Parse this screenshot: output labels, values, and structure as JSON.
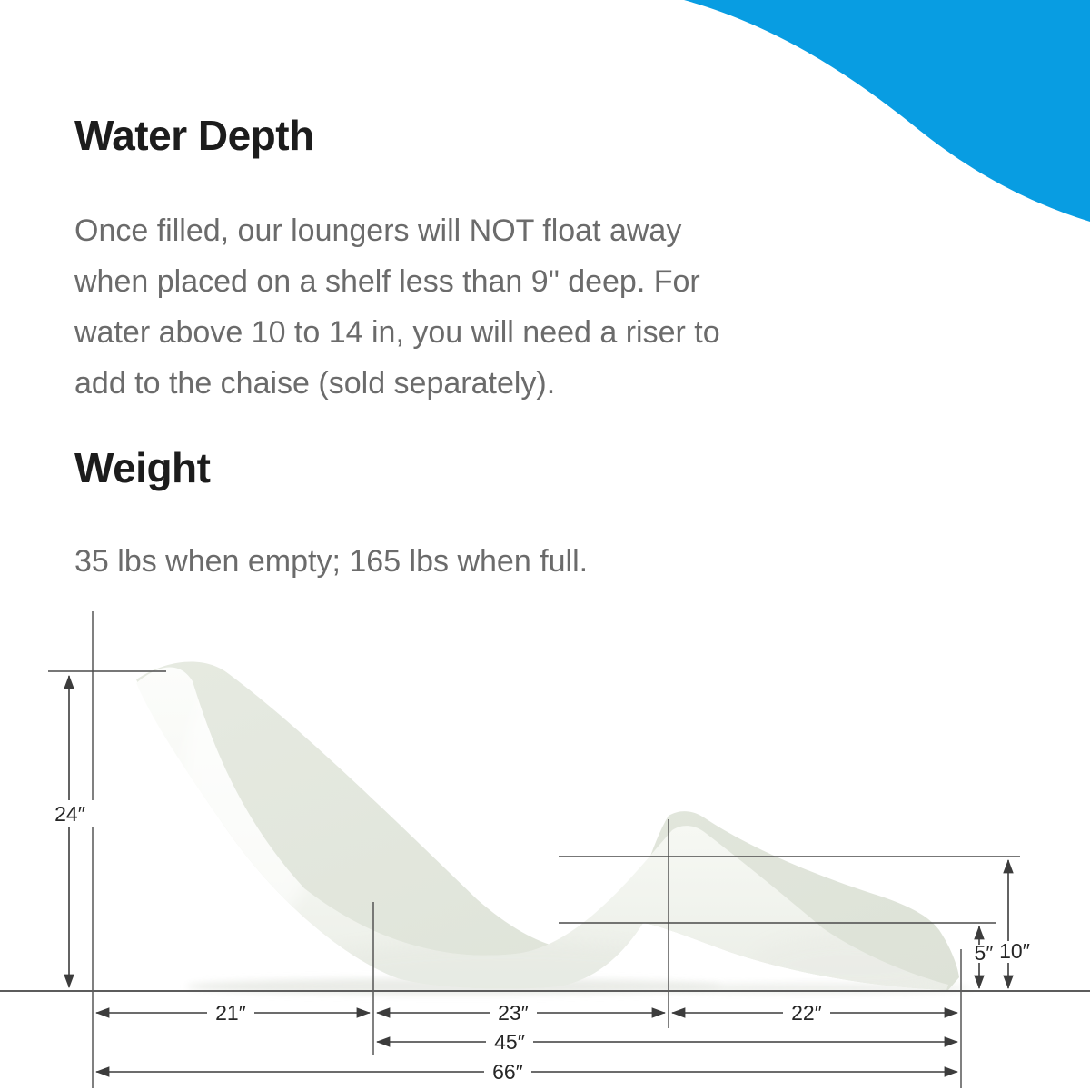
{
  "colors": {
    "accent_blue": "#089de2",
    "chaise_face": "#f8f9f6",
    "chaise_top_surface": "#e2e6dc"
  },
  "sections": [
    {
      "heading": "Water Depth",
      "lines": [
        "Once filled, our loungers will NOT float away",
        "when placed on a shelf less than 9\" deep. For",
        "water above 10 to 14 in, you will need a riser to",
        "add to the chaise (sold separately)."
      ]
    },
    {
      "heading": "Weight",
      "lines": [
        "35 lbs when empty; 165 lbs when full."
      ]
    }
  ],
  "diagram": {
    "subject": "Chaise lounger side-profile dimension diagram",
    "labels": {
      "overall_height": "24″",
      "back_section_length": "21″",
      "seat_section_length": "23″",
      "leg_section_length": "22″",
      "seat_plus_leg_length": "45″",
      "overall_length": "66″",
      "foot_end_height": "5″",
      "leg_rest_height": "10″"
    }
  }
}
